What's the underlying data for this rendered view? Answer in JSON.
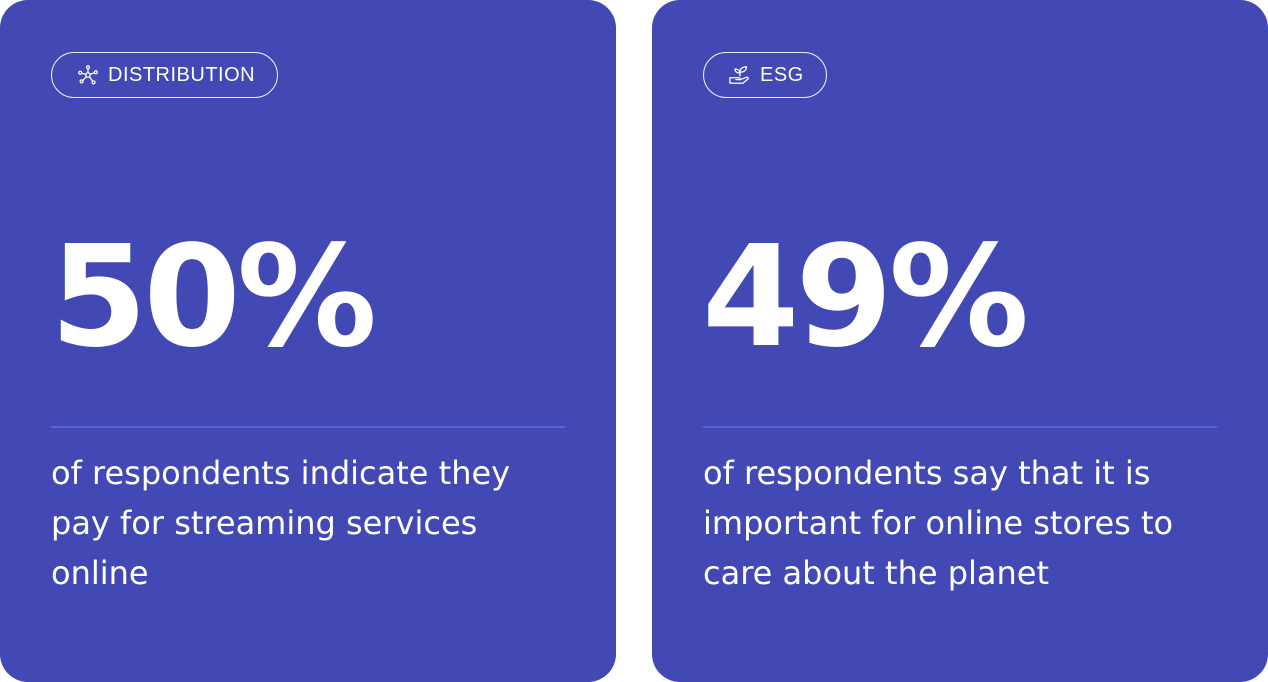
{
  "colors": {
    "card_background": "#4349b4",
    "text": "#ffffff",
    "divider": "#5a63e6"
  },
  "cards": [
    {
      "tag": {
        "label": "DISTRIBUTION",
        "icon": "network-nodes-icon"
      },
      "stat": "50%",
      "description": "of respondents indicate they pay for streaming services online"
    },
    {
      "tag": {
        "label": "ESG",
        "icon": "hand-plant-icon"
      },
      "stat": "49%",
      "description": "of respondents say that it is important for online stores to care about the planet"
    }
  ]
}
